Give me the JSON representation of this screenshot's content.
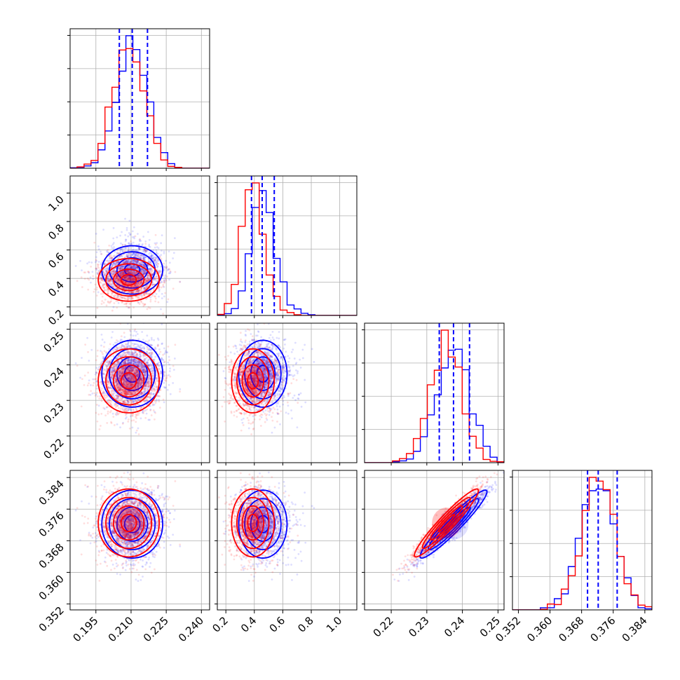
{
  "chart_data": {
    "type": "corner",
    "grid": true,
    "legend": "none",
    "colors": {
      "series_a": "#0000ff",
      "series_b": "#ff0000",
      "grid": "#b0b0b0",
      "axes": "#000000"
    },
    "series": [
      {
        "color": "#0000ff",
        "means": [
          0.2105,
          0.46,
          0.2375,
          0.3722
        ],
        "sds": [
          0.0065,
          0.085,
          0.0047,
          0.0043
        ],
        "corr": 0.95,
        "quantiles": [
          [
            0.205,
            0.2105,
            0.217
          ],
          [
            0.38,
            0.455,
            0.54
          ],
          [
            0.2335,
            0.2375,
            0.242
          ],
          [
            0.3695,
            0.3722,
            0.377
          ]
        ]
      },
      {
        "color": "#ff0000",
        "means": [
          0.209,
          0.39,
          0.2355,
          0.3725
        ],
        "sds": [
          0.0065,
          0.075,
          0.0045,
          0.0043
        ],
        "corr": 0.95
      }
    ],
    "parameters": [
      {
        "range": [
          0.184,
          0.2435
        ],
        "ticks": [
          0.195,
          0.21,
          0.225,
          0.24
        ],
        "tick_labels": [
          "0.195",
          "0.210",
          "0.225",
          "0.240"
        ]
      },
      {
        "range": [
          0.14,
          1.12
        ],
        "ticks": [
          0.2,
          0.4,
          0.6,
          0.8,
          1.0
        ],
        "tick_labels": [
          "0.2",
          "0.4",
          "0.6",
          "0.8",
          "1.0"
        ]
      },
      {
        "range": [
          0.2125,
          0.2517
        ],
        "ticks": [
          0.22,
          0.23,
          0.24,
          0.25
        ],
        "tick_labels": [
          "0.22",
          "0.23",
          "0.24",
          "0.25"
        ]
      },
      {
        "range": [
          0.3505,
          0.3858
        ],
        "ticks": [
          0.352,
          0.36,
          0.368,
          0.376,
          0.384
        ],
        "tick_labels": [
          "0.352",
          "0.360",
          "0.368",
          "0.376",
          "0.384"
        ]
      }
    ]
  }
}
